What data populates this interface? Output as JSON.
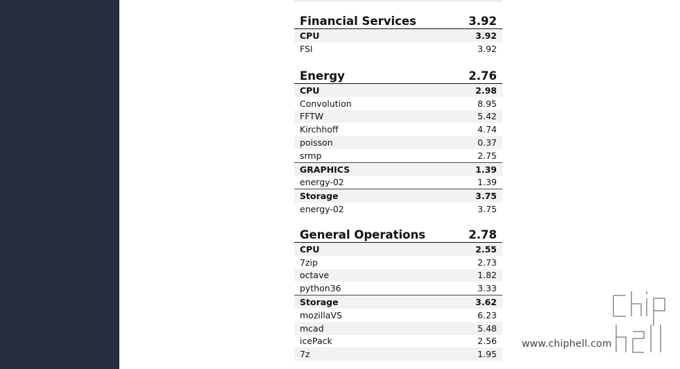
{
  "sections": [
    {
      "title": "Financial Services",
      "score": "3.92",
      "groups": [
        {
          "name": "CPU",
          "score": "3.92",
          "items": [
            {
              "name": "FSI",
              "value": "3.92"
            }
          ]
        }
      ]
    },
    {
      "title": "Energy",
      "score": "2.76",
      "groups": [
        {
          "name": "CPU",
          "score": "2.98",
          "items": [
            {
              "name": "Convolution",
              "value": "8.95"
            },
            {
              "name": "FFTW",
              "value": "5.42"
            },
            {
              "name": "Kirchhoff",
              "value": "4.74"
            },
            {
              "name": "poisson",
              "value": "0.37"
            },
            {
              "name": "srmp",
              "value": "2.75"
            }
          ]
        },
        {
          "name": "GRAPHICS",
          "score": "1.39",
          "items": [
            {
              "name": "energy-02",
              "value": "1.39"
            }
          ]
        },
        {
          "name": "Storage",
          "score": "3.75",
          "items": [
            {
              "name": "energy-02",
              "value": "3.75"
            }
          ]
        }
      ]
    },
    {
      "title": "General Operations",
      "score": "2.78",
      "groups": [
        {
          "name": "CPU",
          "score": "2.55",
          "items": [
            {
              "name": "7zip",
              "value": "2.73"
            },
            {
              "name": "octave",
              "value": "1.82"
            },
            {
              "name": "python36",
              "value": "3.33"
            }
          ]
        },
        {
          "name": "Storage",
          "score": "3.62",
          "items": [
            {
              "name": "mozillaVS",
              "value": "6.23"
            },
            {
              "name": "mcad",
              "value": "5.48"
            },
            {
              "name": "icePack",
              "value": "2.56"
            },
            {
              "name": "7z",
              "value": "1.95"
            }
          ]
        }
      ]
    }
  ],
  "watermark": {
    "url": "www.chiphell.com",
    "logo_text": "chip hell"
  }
}
